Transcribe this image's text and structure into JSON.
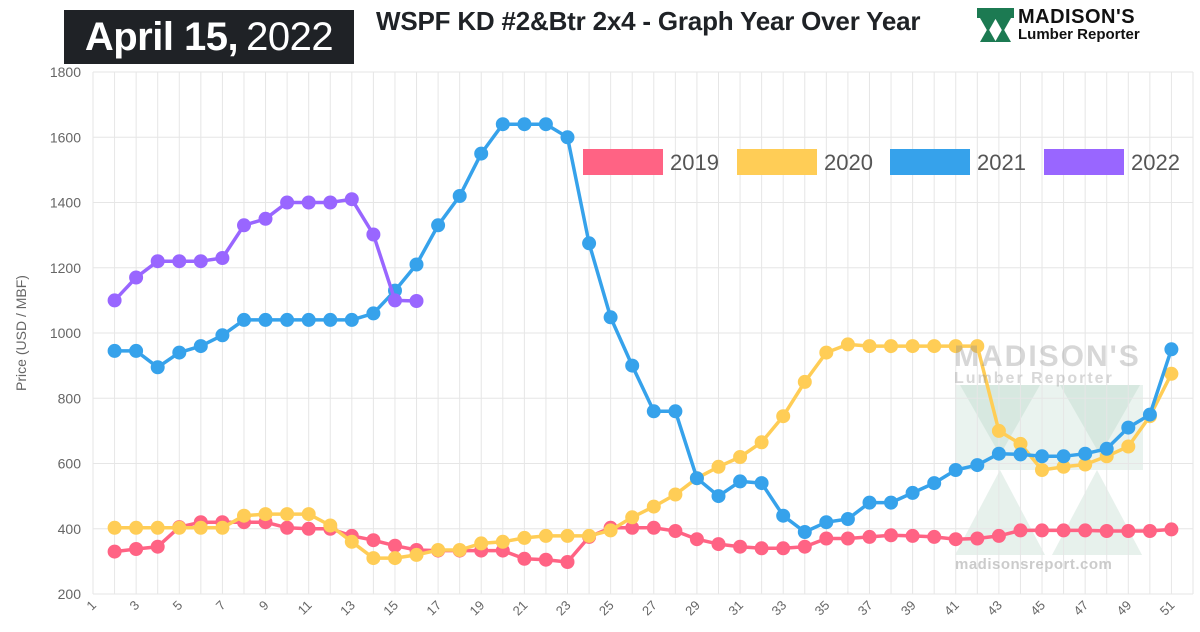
{
  "header": {
    "date_month_day": "April 15,",
    "date_year": "2022",
    "title": "WSPF KD #2&Btr 2x4 - Graph Year Over Year",
    "logo_name": "MADISON'S",
    "logo_sub": "Lumber Reporter"
  },
  "watermark": {
    "name": "MADISON'S",
    "sub": "Lumber Reporter",
    "url": "madisonsreport.com"
  },
  "colors": {
    "grid": "#e6e6e6",
    "axis_text": "#666666",
    "logo_green": "#1c7a52"
  },
  "chart_data": {
    "type": "line",
    "ylabel": "Price (USD / MBF)",
    "xlabel": "",
    "ylim": [
      200,
      1800
    ],
    "yticks": [
      200,
      400,
      600,
      800,
      1000,
      1200,
      1400,
      1600,
      1800
    ],
    "xlim": [
      1,
      52
    ],
    "xticks": [
      1,
      3,
      5,
      7,
      9,
      11,
      13,
      15,
      17,
      19,
      21,
      23,
      25,
      27,
      29,
      31,
      33,
      35,
      37,
      39,
      41,
      43,
      45,
      47,
      49,
      51
    ],
    "grid": true,
    "legend_position": "top-right",
    "series": [
      {
        "name": "2019",
        "color": "#ff6384",
        "points": [
          [
            2,
            330
          ],
          [
            3,
            338
          ],
          [
            4,
            345
          ],
          [
            5,
            405
          ],
          [
            6,
            420
          ],
          [
            7,
            420
          ],
          [
            8,
            420
          ],
          [
            9,
            420
          ],
          [
            10,
            403
          ],
          [
            11,
            400
          ],
          [
            12,
            400
          ],
          [
            13,
            378
          ],
          [
            14,
            365
          ],
          [
            15,
            348
          ],
          [
            16,
            335
          ],
          [
            17,
            333
          ],
          [
            18,
            333
          ],
          [
            19,
            333
          ],
          [
            20,
            333
          ],
          [
            21,
            308
          ],
          [
            22,
            305
          ],
          [
            23,
            298
          ],
          [
            24,
            375
          ],
          [
            25,
            403
          ],
          [
            26,
            403
          ],
          [
            27,
            403
          ],
          [
            28,
            393
          ],
          [
            29,
            368
          ],
          [
            30,
            353
          ],
          [
            31,
            345
          ],
          [
            32,
            340
          ],
          [
            33,
            340
          ],
          [
            34,
            345
          ],
          [
            35,
            370
          ],
          [
            36,
            370
          ],
          [
            37,
            375
          ],
          [
            38,
            380
          ],
          [
            39,
            378
          ],
          [
            40,
            375
          ],
          [
            41,
            368
          ],
          [
            42,
            370
          ],
          [
            43,
            378
          ],
          [
            44,
            395
          ],
          [
            45,
            395
          ],
          [
            46,
            395
          ],
          [
            47,
            395
          ],
          [
            48,
            393
          ],
          [
            49,
            393
          ],
          [
            50,
            393
          ],
          [
            51,
            398
          ]
        ]
      },
      {
        "name": "2020",
        "color": "#ffcd56",
        "points": [
          [
            2,
            403
          ],
          [
            3,
            403
          ],
          [
            4,
            403
          ],
          [
            5,
            403
          ],
          [
            6,
            403
          ],
          [
            7,
            403
          ],
          [
            8,
            440
          ],
          [
            9,
            445
          ],
          [
            10,
            445
          ],
          [
            11,
            445
          ],
          [
            12,
            410
          ],
          [
            13,
            360
          ],
          [
            14,
            310
          ],
          [
            15,
            310
          ],
          [
            16,
            320
          ],
          [
            17,
            335
          ],
          [
            18,
            335
          ],
          [
            19,
            355
          ],
          [
            20,
            360
          ],
          [
            21,
            372
          ],
          [
            22,
            378
          ],
          [
            23,
            378
          ],
          [
            24,
            378
          ],
          [
            25,
            395
          ],
          [
            26,
            435
          ],
          [
            27,
            468
          ],
          [
            28,
            505
          ],
          [
            29,
            555
          ],
          [
            30,
            590
          ],
          [
            31,
            620
          ],
          [
            32,
            665
          ],
          [
            33,
            745
          ],
          [
            34,
            850
          ],
          [
            35,
            940
          ],
          [
            36,
            965
          ],
          [
            37,
            960
          ],
          [
            38,
            960
          ],
          [
            39,
            960
          ],
          [
            40,
            960
          ],
          [
            41,
            960
          ],
          [
            42,
            960
          ],
          [
            43,
            700
          ],
          [
            44,
            660
          ],
          [
            45,
            580
          ],
          [
            46,
            590
          ],
          [
            47,
            597
          ],
          [
            48,
            622
          ],
          [
            49,
            652
          ],
          [
            50,
            745
          ],
          [
            51,
            875
          ]
        ]
      },
      {
        "name": "2021",
        "color": "#36a2eb",
        "points": [
          [
            2,
            945
          ],
          [
            3,
            945
          ],
          [
            4,
            895
          ],
          [
            5,
            940
          ],
          [
            6,
            960
          ],
          [
            7,
            993
          ],
          [
            8,
            1040
          ],
          [
            9,
            1040
          ],
          [
            10,
            1040
          ],
          [
            11,
            1040
          ],
          [
            12,
            1040
          ],
          [
            13,
            1040
          ],
          [
            14,
            1060
          ],
          [
            15,
            1130
          ],
          [
            16,
            1210
          ],
          [
            17,
            1330
          ],
          [
            18,
            1420
          ],
          [
            19,
            1550
          ],
          [
            20,
            1640
          ],
          [
            21,
            1640
          ],
          [
            22,
            1640
          ],
          [
            23,
            1600
          ],
          [
            24,
            1275
          ],
          [
            25,
            1048
          ],
          [
            26,
            900
          ],
          [
            27,
            760
          ],
          [
            28,
            760
          ],
          [
            29,
            555
          ],
          [
            30,
            500
          ],
          [
            31,
            545
          ],
          [
            32,
            540
          ],
          [
            33,
            440
          ],
          [
            34,
            390
          ],
          [
            35,
            420
          ],
          [
            36,
            430
          ],
          [
            37,
            480
          ],
          [
            38,
            480
          ],
          [
            39,
            510
          ],
          [
            40,
            540
          ],
          [
            41,
            580
          ],
          [
            42,
            595
          ],
          [
            43,
            630
          ],
          [
            44,
            628
          ],
          [
            45,
            622
          ],
          [
            46,
            622
          ],
          [
            47,
            630
          ],
          [
            48,
            645
          ],
          [
            49,
            710
          ],
          [
            50,
            750
          ],
          [
            51,
            950
          ]
        ]
      },
      {
        "name": "2022",
        "color": "#9966ff",
        "points": [
          [
            2,
            1100
          ],
          [
            3,
            1170
          ],
          [
            4,
            1220
          ],
          [
            5,
            1220
          ],
          [
            6,
            1220
          ],
          [
            7,
            1230
          ],
          [
            8,
            1330
          ],
          [
            9,
            1350
          ],
          [
            10,
            1400
          ],
          [
            11,
            1400
          ],
          [
            12,
            1400
          ],
          [
            13,
            1410
          ],
          [
            14,
            1302
          ],
          [
            15,
            1100
          ],
          [
            16,
            1098
          ]
        ]
      }
    ]
  }
}
